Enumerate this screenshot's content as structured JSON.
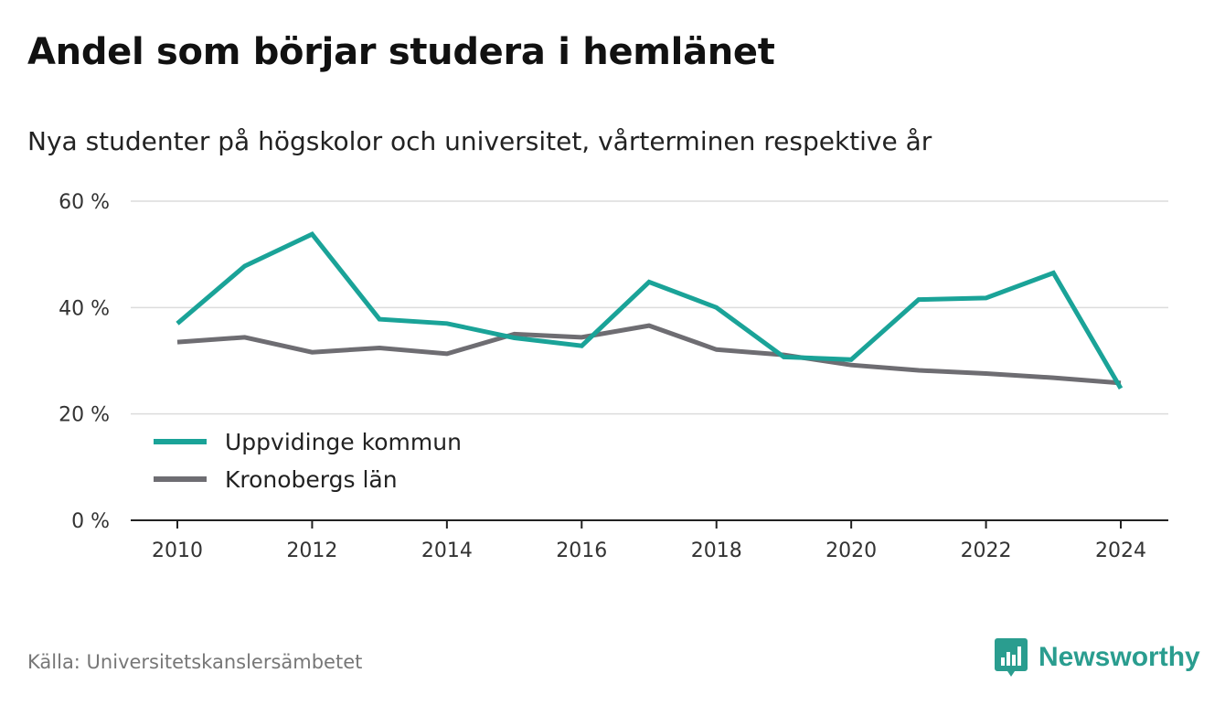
{
  "title": "Andel som börjar studera i hemlänet",
  "subtitle": "Nya studenter på högskolor och universitet, vårterminen respektive år",
  "source": "Källa: Universitetskanslersämbetet",
  "brand": {
    "name": "Newsworthy",
    "icon": "newsworthy-logo-icon",
    "color": "#2a9d8f"
  },
  "chart_data": {
    "type": "line",
    "x": [
      2010,
      2011,
      2012,
      2013,
      2014,
      2015,
      2016,
      2017,
      2018,
      2019,
      2020,
      2021,
      2022,
      2023,
      2024
    ],
    "series": [
      {
        "name": "Uppvidinge kommun",
        "color": "#1aa398",
        "values": [
          37.0,
          47.8,
          53.8,
          37.8,
          37.0,
          34.3,
          32.8,
          44.8,
          40.0,
          30.7,
          30.2,
          41.5,
          41.8,
          46.5,
          24.8
        ]
      },
      {
        "name": "Kronobergs län",
        "color": "#6e6d72",
        "values": [
          33.5,
          34.4,
          31.6,
          32.4,
          31.3,
          35.0,
          34.4,
          36.6,
          32.1,
          31.1,
          29.2,
          28.2,
          27.6,
          26.8,
          25.8
        ]
      }
    ],
    "xticks": [
      "2010",
      "2012",
      "2014",
      "2016",
      "2018",
      "2020",
      "2022",
      "2024"
    ],
    "yticks": [
      "0 %",
      "20 %",
      "40 %",
      "60 %"
    ],
    "ylim": [
      0,
      60
    ],
    "xlim": [
      2010,
      2024
    ],
    "grid": true,
    "legend": "bottom-left"
  }
}
